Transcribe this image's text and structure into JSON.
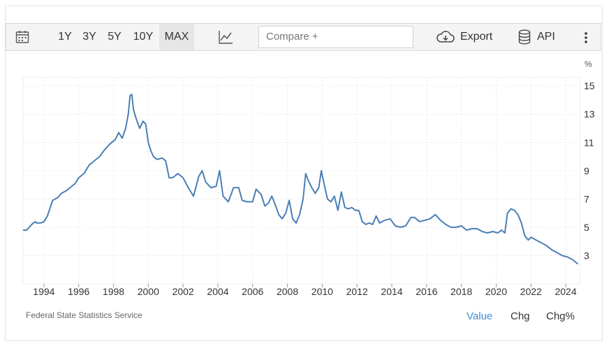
{
  "toolbar": {
    "ranges": [
      "1Y",
      "3Y",
      "5Y",
      "10Y",
      "MAX"
    ],
    "active_range": "MAX",
    "compare_placeholder": "Compare +",
    "export_label": "Export",
    "api_label": "API"
  },
  "footer": {
    "source": "Federal State Statistics Service",
    "tabs": [
      "Value",
      "Chg",
      "Chg%"
    ],
    "active_tab": "Value"
  },
  "colors": {
    "line": "#4a7fb5",
    "accent": "#3d8fd6"
  },
  "chart_data": {
    "type": "line",
    "title": "",
    "xlabel": "",
    "ylabel": "%",
    "xlim": [
      1992.8,
      2024.8
    ],
    "ylim": [
      1,
      15.6
    ],
    "y_ticks": [
      3,
      5,
      7,
      9,
      11,
      13,
      15
    ],
    "x_ticks": [
      "1994",
      "1996",
      "1998",
      "2000",
      "2002",
      "2004",
      "2006",
      "2008",
      "2010",
      "2012",
      "2014",
      "2016",
      "2018",
      "2020",
      "2022",
      "2024"
    ],
    "grid": true,
    "y_axis_side": "right",
    "series": [
      {
        "name": "",
        "x": [
          1992.8,
          1993.0,
          1993.3,
          1993.5,
          1993.6,
          1993.8,
          1994.0,
          1994.2,
          1994.5,
          1994.8,
          1995.0,
          1995.3,
          1995.6,
          1995.8,
          1996.0,
          1996.3,
          1996.6,
          1996.9,
          1997.2,
          1997.5,
          1997.8,
          1998.1,
          1998.3,
          1998.5,
          1998.7,
          1998.85,
          1998.95,
          1999.05,
          1999.15,
          1999.3,
          1999.5,
          1999.7,
          1999.85,
          2000.0,
          2000.15,
          2000.3,
          2000.5,
          2000.8,
          2001.0,
          2001.2,
          2001.4,
          2001.7,
          2002.0,
          2002.3,
          2002.6,
          2002.9,
          2003.1,
          2003.3,
          2003.6,
          2003.9,
          2004.1,
          2004.3,
          2004.6,
          2004.9,
          2005.2,
          2005.4,
          2005.7,
          2006.0,
          2006.2,
          2006.5,
          2006.7,
          2006.9,
          2007.1,
          2007.3,
          2007.5,
          2007.7,
          2007.9,
          2008.1,
          2008.3,
          2008.5,
          2008.7,
          2008.9,
          2009.05,
          2009.2,
          2009.4,
          2009.6,
          2009.8,
          2009.95,
          2010.1,
          2010.3,
          2010.5,
          2010.7,
          2010.9,
          2011.1,
          2011.3,
          2011.5,
          2011.7,
          2011.9,
          2012.1,
          2012.3,
          2012.5,
          2012.7,
          2012.9,
          2013.1,
          2013.3,
          2013.6,
          2013.9,
          2014.2,
          2014.5,
          2014.8,
          2015.1,
          2015.3,
          2015.6,
          2015.9,
          2016.2,
          2016.5,
          2016.8,
          2017.1,
          2017.4,
          2017.7,
          2018.0,
          2018.3,
          2018.6,
          2018.9,
          2019.2,
          2019.5,
          2019.8,
          2020.1,
          2020.3,
          2020.5,
          2020.65,
          2020.85,
          2021.05,
          2021.25,
          2021.45,
          2021.65,
          2021.85,
          2022.0,
          2022.3,
          2022.6,
          2022.9,
          2023.2,
          2023.5,
          2023.8,
          2024.1,
          2024.4,
          2024.7
        ],
        "y": [
          4.8,
          4.8,
          5.2,
          5.4,
          5.3,
          5.3,
          5.4,
          5.8,
          6.9,
          7.1,
          7.4,
          7.6,
          7.9,
          8.1,
          8.5,
          8.8,
          9.4,
          9.7,
          10.0,
          10.5,
          10.9,
          11.2,
          11.7,
          11.3,
          12.0,
          13.0,
          14.3,
          14.4,
          13.3,
          12.7,
          12.0,
          12.5,
          12.3,
          11.0,
          10.4,
          10.0,
          9.8,
          9.9,
          9.7,
          8.5,
          8.5,
          8.8,
          8.5,
          7.8,
          7.2,
          8.6,
          9.0,
          8.2,
          7.8,
          7.9,
          9.0,
          7.2,
          6.8,
          7.8,
          7.8,
          6.9,
          6.8,
          6.8,
          7.7,
          7.3,
          6.5,
          6.7,
          7.2,
          6.6,
          5.9,
          5.6,
          6.0,
          6.9,
          5.6,
          5.3,
          5.9,
          7.0,
          8.8,
          8.3,
          7.8,
          7.4,
          7.8,
          9.0,
          8.1,
          7.0,
          6.8,
          7.2,
          6.2,
          7.5,
          6.4,
          6.3,
          6.4,
          6.2,
          6.2,
          5.4,
          5.2,
          5.3,
          5.2,
          5.8,
          5.3,
          5.5,
          5.6,
          5.1,
          5.0,
          5.1,
          5.7,
          5.7,
          5.4,
          5.5,
          5.6,
          5.9,
          5.5,
          5.2,
          5.0,
          5.0,
          5.1,
          4.8,
          4.9,
          4.9,
          4.7,
          4.6,
          4.7,
          4.6,
          4.8,
          4.6,
          6.0,
          6.3,
          6.2,
          5.9,
          5.3,
          4.4,
          4.1,
          4.3,
          4.1,
          3.9,
          3.7,
          3.4,
          3.2,
          3.0,
          2.9,
          2.7,
          2.4
        ]
      }
    ]
  }
}
